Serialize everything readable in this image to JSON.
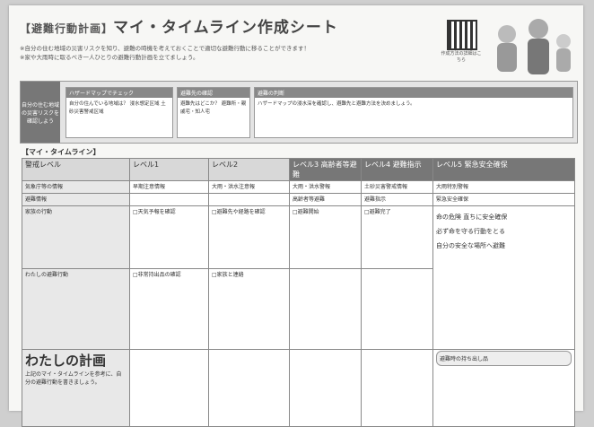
{
  "header": {
    "title_tag": "【避難行動計画】",
    "title": "マイ・タイムライン作成シート",
    "notes": [
      "※自分の住む地域の災害リスクを知り、避難の時機を考えておくことで適切な避難行動に移ることができます！",
      "※家や大雨時に取るべき一人ひとりの避難行動計画を立てましょう。"
    ],
    "qr_caption": "作成方法の詳細はこちら"
  },
  "band": {
    "label": "自分の住む地域の災害リスクを確認しよう",
    "sections": [
      {
        "title": "ハザードマップでチェック",
        "text": "自分の住んでいる地域は？ 浸水想定区域 土砂災害警戒区域"
      },
      {
        "title": "避難先の確認",
        "text": "避難先はどこか？ 避難所・親戚宅・知人宅"
      },
      {
        "title": "避難の判断",
        "text": "ハザードマップの浸水深を確認し、避難先と避難方法を決めましょう。"
      }
    ]
  },
  "timeline": {
    "heading": "【マイ・タイムライン】",
    "levels": [
      "警戒レベル",
      "レベル1",
      "レベル2",
      "レベル3 高齢者等避難",
      "レベル4 避難指示",
      "レベル5 緊急安全確保"
    ],
    "rows": [
      [
        "気象庁等の情報",
        "早期注意情報",
        "大雨・洪水注意報",
        "大雨・洪水警報",
        "土砂災害警戒情報",
        "大雨特別警報"
      ],
      [
        "避難情報",
        "",
        "",
        "高齢者等避難",
        "避難指示",
        "緊急安全確保"
      ],
      [
        "家族の行動",
        "□天気予報を確認",
        "□避難先や経路を確認",
        "□避難開始",
        "□避難完了",
        ""
      ],
      [
        "わたしの避難行動",
        "□非常持出品の確認",
        "□家族と連絡",
        "",
        "",
        ""
      ]
    ],
    "warnings": [
      "命の危険 直ちに安全確保",
      "必ず命を守る行動をとる",
      "自分の安全な場所へ避難"
    ],
    "plan": "わたしの計画",
    "plan_note": "上記のマイ・タイムラインを参考に、自分の避難行動を書きましょう。",
    "pack": "避難時の持ち出し品"
  }
}
